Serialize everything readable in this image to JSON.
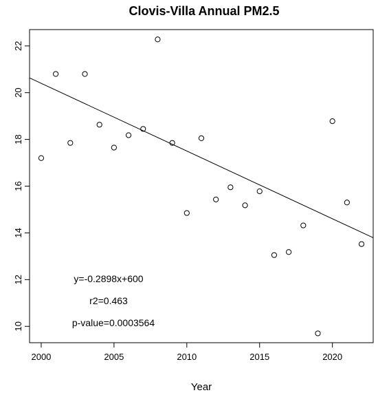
{
  "chart_data": {
    "type": "scatter",
    "title": "Clovis-Villa Annual PM2.5",
    "xlabel": "Year",
    "ylabel": "",
    "xlim": [
      1999.2,
      2022.8
    ],
    "ylim": [
      9.3,
      22.7
    ],
    "xticks": [
      2000,
      2005,
      2010,
      2015,
      2020
    ],
    "yticks": [
      10,
      12,
      14,
      16,
      18,
      20,
      22
    ],
    "grid": false,
    "x": [
      2000,
      2001,
      2002,
      2003,
      2004,
      2005,
      2006,
      2007,
      2008,
      2009,
      2010,
      2011,
      2012,
      2013,
      2014,
      2015,
      2016,
      2017,
      2018,
      2019,
      2020,
      2021,
      2022
    ],
    "y": [
      17.2,
      20.8,
      17.85,
      20.8,
      18.63,
      17.65,
      18.18,
      18.45,
      22.28,
      17.85,
      14.85,
      18.05,
      15.43,
      15.95,
      15.18,
      15.78,
      13.05,
      13.18,
      14.32,
      9.7,
      18.78,
      15.3,
      13.52
    ],
    "regression": {
      "slope": -0.2898,
      "intercept": 600
    },
    "annotations": {
      "equation": "y=-0.2898x+600",
      "r2": "r2=0.463",
      "pvalue": "p-value=0.0003564"
    }
  }
}
